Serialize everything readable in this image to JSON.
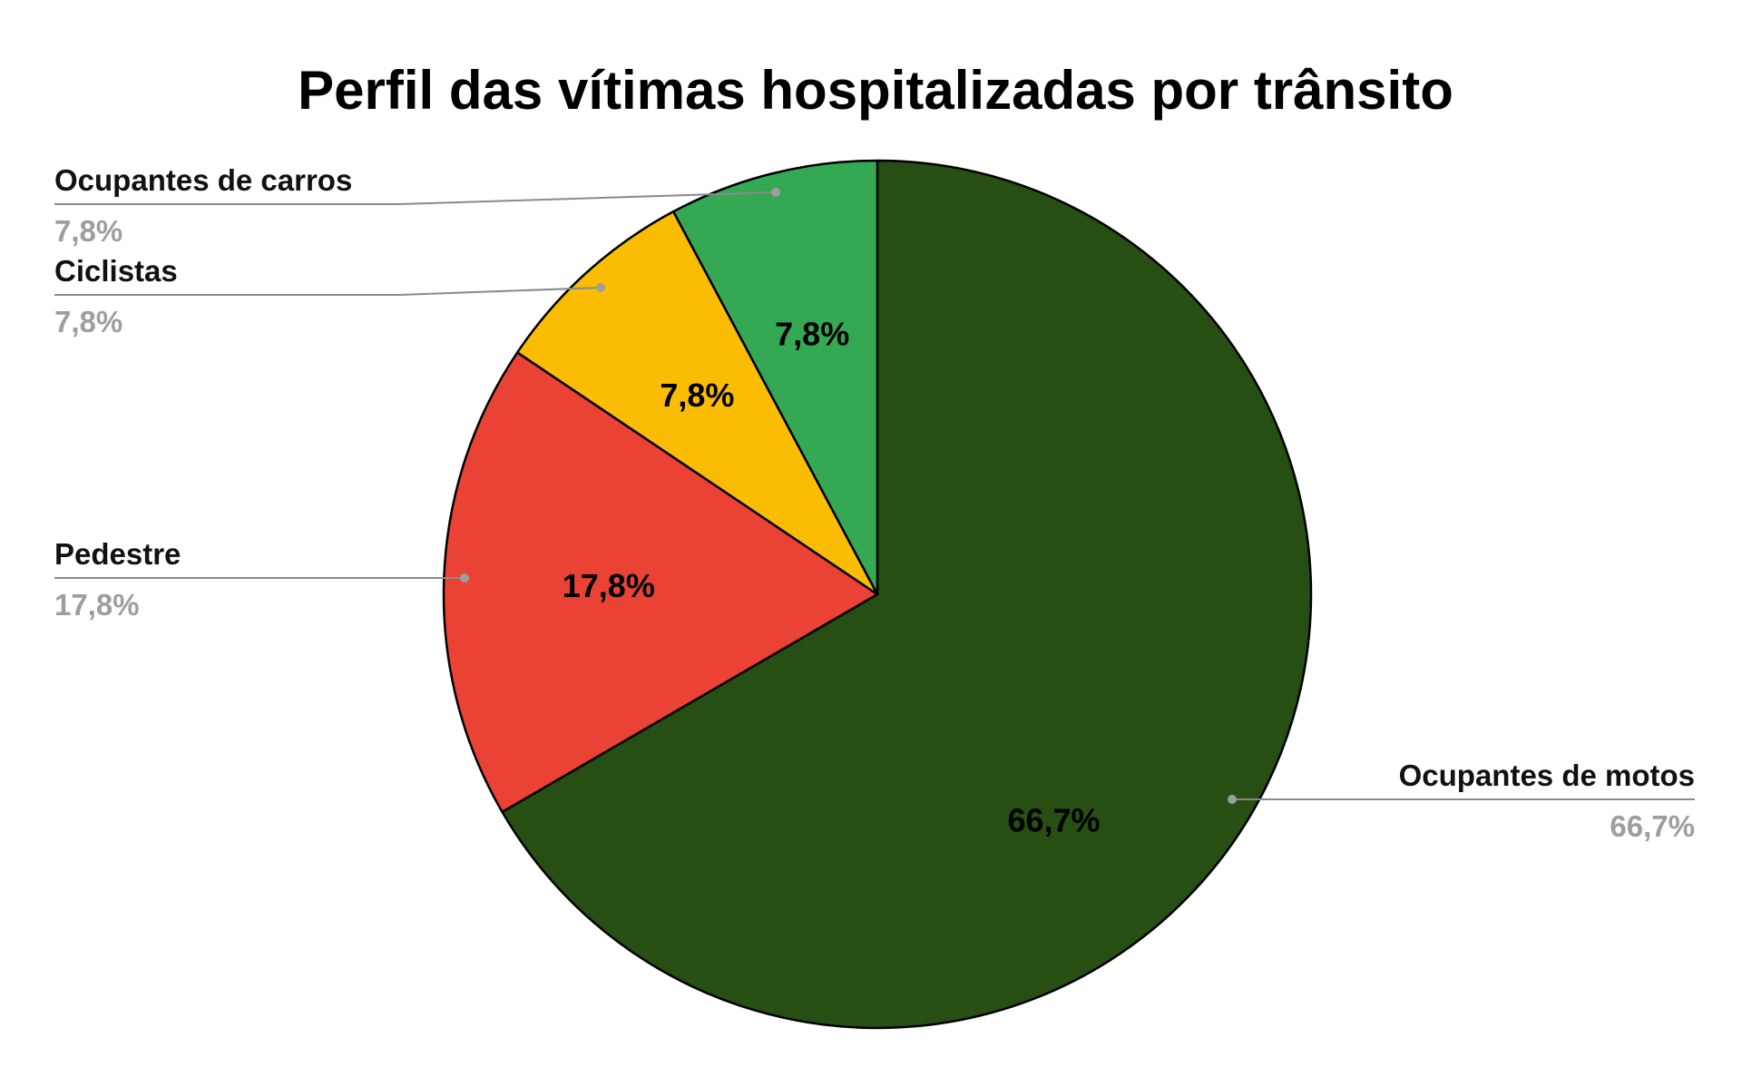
{
  "chart_data": {
    "type": "pie",
    "title": "Perfil das vítimas hospitalizadas por trânsito",
    "start_angle_deg": 0,
    "direction": "clockwise",
    "slices": [
      {
        "label": "Ocupantes de motos",
        "value": 66.7,
        "display": "66,7%",
        "color": "#274e13"
      },
      {
        "label": "Pedestre",
        "value": 17.8,
        "display": "17,8%",
        "color": "#ea4335"
      },
      {
        "label": "Ciclistas",
        "value": 7.8,
        "display": "7,8%",
        "color": "#fbbc04"
      },
      {
        "label": "Ocupantes de carros",
        "value": 7.8,
        "display": "7,8%",
        "color": "#34a853"
      }
    ],
    "legend": "callouts"
  }
}
